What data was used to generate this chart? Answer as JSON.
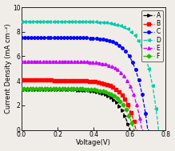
{
  "title": "",
  "xlabel": "Voltage(V)",
  "ylabel": "Current Density (mA cm⁻²)",
  "xlim": [
    0.0,
    0.8
  ],
  "ylim": [
    0.0,
    10.0
  ],
  "xticks": [
    0.0,
    0.2,
    0.4,
    0.6,
    0.8
  ],
  "yticks": [
    0,
    2,
    4,
    6,
    8,
    10
  ],
  "curves": [
    {
      "label": "A",
      "color": "#000000",
      "marker": ">",
      "jsc": 3.3,
      "voc": 0.6,
      "n": 2.5
    },
    {
      "label": "B",
      "color": "#ff0000",
      "marker": "s",
      "jsc": 4.05,
      "voc": 0.635,
      "n": 2.5
    },
    {
      "label": "C",
      "color": "#0000ff",
      "marker": "o",
      "jsc": 7.55,
      "voc": 0.7,
      "n": 2.5
    },
    {
      "label": "D",
      "color": "#00ccaa",
      "marker": "<",
      "jsc": 8.85,
      "voc": 0.76,
      "n": 2.5
    },
    {
      "label": "E",
      "color": "#cc00ff",
      "marker": "^",
      "jsc": 5.6,
      "voc": 0.668,
      "n": 2.5
    },
    {
      "label": "F",
      "color": "#22bb00",
      "marker": "D",
      "jsc": 3.38,
      "voc": 0.623,
      "n": 2.5
    }
  ],
  "figsize": [
    2.19,
    1.89
  ],
  "dpi": 100,
  "background_color": "#f0ede8",
  "legend_fontsize": 5.5,
  "axis_fontsize": 6,
  "tick_fontsize": 5.5,
  "n_markers": 40,
  "marker_size": 2.5,
  "line_width": 0.9
}
